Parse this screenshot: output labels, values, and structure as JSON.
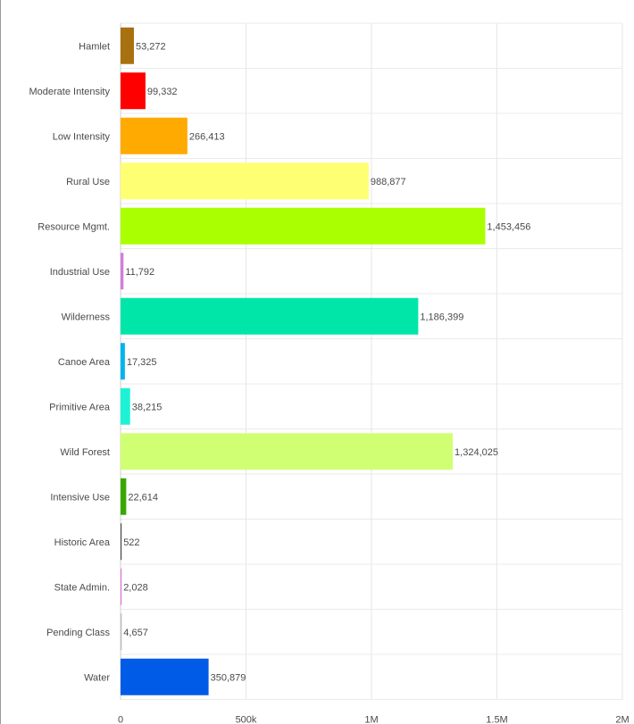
{
  "chart_data": {
    "type": "bar",
    "orientation": "horizontal",
    "title": "",
    "xlabel": "",
    "ylabel": "",
    "xlim": [
      0,
      2000000
    ],
    "x_ticks": [
      {
        "value": 0,
        "label": "0"
      },
      {
        "value": 500000,
        "label": "500k"
      },
      {
        "value": 1000000,
        "label": "1M"
      },
      {
        "value": 1500000,
        "label": "1.5M"
      },
      {
        "value": 2000000,
        "label": "2M"
      }
    ],
    "grid": true,
    "legend": "none",
    "categories": [
      "Hamlet",
      "Moderate Intensity",
      "Low Intensity",
      "Rural Use",
      "Resource Mgmt.",
      "Industrial Use",
      "Wilderness",
      "Canoe Area",
      "Primitive Area",
      "Wild Forest",
      "Intensive Use",
      "Historic Area",
      "State Admin.",
      "Pending Class",
      "Water"
    ],
    "values": [
      53272,
      99332,
      266413,
      988877,
      1453456,
      11792,
      1186399,
      17325,
      38215,
      1324025,
      22614,
      522,
      2028,
      4657,
      350879
    ],
    "value_labels": [
      "53,272",
      "99,332",
      "266,413",
      "988,877",
      "1,453,456",
      "11,792",
      "1,186,399",
      "17,325",
      "38,215",
      "1,324,025",
      "22,614",
      "522",
      "2,028",
      "4,657",
      "350,879"
    ],
    "colors": [
      "#a8700f",
      "#ff0000",
      "#ffaa00",
      "#ffff73",
      "#aaff00",
      "#d17ed9",
      "#00e6a9",
      "#00b4f0",
      "#1ef2d6",
      "#d1ff73",
      "#38a800",
      "#4e4e4e",
      "#e07ad9",
      "#bbbbbb",
      "#005ce6"
    ]
  }
}
